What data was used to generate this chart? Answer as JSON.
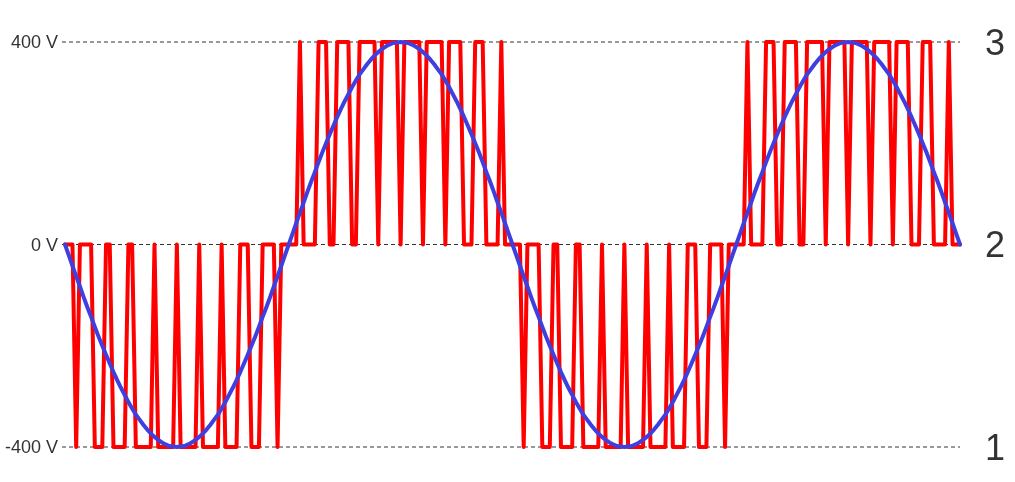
{
  "chart_data": {
    "type": "line",
    "ylim": [
      -400,
      400
    ],
    "yticks": [
      {
        "value": 400,
        "label": "400 V"
      },
      {
        "value": 0,
        "label": "0 V"
      },
      {
        "value": -400,
        "label": "-400 V"
      }
    ],
    "grid": "y",
    "tick_labels": "y",
    "annotations": [
      "1",
      "2",
      "3"
    ],
    "categories": [
      null,
      null,
      null,
      null,
      null,
      null,
      null,
      null,
      null,
      null,
      null,
      null,
      null,
      null,
      null,
      null,
      null,
      null,
      null,
      null,
      null,
      null,
      null,
      null,
      null,
      null,
      null,
      null,
      null,
      null,
      null,
      null,
      null,
      null,
      null,
      null,
      null,
      null,
      null,
      null,
      null,
      null,
      null,
      null,
      null,
      null,
      null,
      null,
      null,
      null,
      null,
      null,
      null,
      null,
      null,
      null,
      null,
      null,
      null,
      null,
      null,
      null,
      null,
      null,
      null,
      null,
      null,
      null,
      null,
      null,
      null,
      null,
      null,
      null,
      null,
      null,
      null,
      null,
      null,
      null,
      null,
      null,
      null,
      null,
      null,
      null,
      null,
      null,
      null,
      null,
      null,
      null,
      null,
      null,
      null,
      null,
      null,
      null,
      null,
      null,
      null,
      null,
      null,
      null,
      null,
      null,
      null,
      null,
      null,
      null,
      null,
      null,
      null,
      null,
      null,
      null,
      null,
      null,
      null,
      null,
      null,
      null,
      null,
      null,
      null,
      null,
      null,
      null,
      null,
      null,
      null,
      null,
      null,
      null,
      null,
      null,
      null,
      null,
      null,
      null,
      null,
      null,
      null,
      null,
      null,
      null,
      null,
      null,
      null,
      null,
      null,
      null,
      null,
      null,
      null,
      null,
      null,
      null,
      null,
      null,
      null,
      null,
      null,
      null,
      null,
      null,
      null,
      null,
      null,
      null,
      null,
      null,
      null,
      null,
      null,
      null,
      null,
      null,
      null,
      null,
      null,
      null,
      null,
      null,
      null,
      null,
      null,
      null,
      null,
      null,
      null,
      null,
      null,
      null,
      null,
      null,
      null,
      null,
      null,
      null,
      null,
      null,
      null,
      null,
      null,
      null,
      null,
      null,
      null,
      null,
      null,
      null,
      null,
      null,
      null,
      null,
      null,
      null,
      null,
      null,
      null,
      null,
      null,
      null,
      null,
      null,
      null,
      null,
      null,
      null,
      null,
      null,
      null,
      null,
      null,
      null,
      null,
      null,
      null,
      null,
      null
    ],
    "series": [
      {
        "color": "#ff0000",
        "values": [
          0,
          0,
          0,
          -400,
          0,
          0,
          0,
          0,
          -400,
          -400,
          -400,
          0,
          0,
          -400,
          -400,
          -400,
          -400,
          0,
          0,
          -400,
          -400,
          -400,
          -400,
          -400,
          0,
          -400,
          -400,
          -400,
          -400,
          -400,
          0,
          -400,
          -400,
          -400,
          -400,
          -400,
          0,
          -400,
          -400,
          -400,
          -400,
          -400,
          0,
          -400,
          -400,
          -400,
          -400,
          0,
          0,
          0,
          -400,
          -400,
          -400,
          0,
          0,
          0,
          0,
          -400,
          0,
          0,
          0,
          0,
          0,
          400,
          0,
          0,
          0,
          0,
          400,
          400,
          400,
          0,
          0,
          400,
          400,
          400,
          400,
          0,
          0,
          400,
          400,
          400,
          400,
          400,
          0,
          400,
          400,
          400,
          400,
          400,
          0,
          400,
          400,
          400,
          400,
          400,
          0,
          400,
          400,
          400,
          400,
          400,
          0,
          400,
          400,
          400,
          400,
          0,
          0,
          0,
          400,
          400,
          400,
          0,
          0,
          0,
          0,
          400,
          0,
          0,
          0,
          0,
          0,
          -400,
          0,
          0,
          0,
          0,
          -400,
          -400,
          -400,
          0,
          0,
          -400,
          -400,
          -400,
          -400,
          0,
          0,
          -400,
          -400,
          -400,
          -400,
          -400,
          0,
          -400,
          -400,
          -400,
          -400,
          -400,
          0,
          -400,
          -400,
          -400,
          -400,
          -400,
          0,
          -400,
          -400,
          -400,
          -400,
          -400,
          0,
          -400,
          -400,
          -400,
          -400,
          0,
          0,
          0,
          -400,
          -400,
          -400,
          0,
          0,
          0,
          0,
          -400,
          0,
          0,
          0,
          0,
          0,
          400,
          0,
          0,
          0,
          0,
          400,
          400,
          400,
          0,
          0,
          400,
          400,
          400,
          400,
          0,
          0,
          400,
          400,
          400,
          400,
          400,
          0,
          400,
          400,
          400,
          400,
          400,
          0,
          400,
          400,
          400,
          400,
          400,
          0,
          400,
          400,
          400,
          400,
          400,
          0,
          400,
          400,
          400,
          400,
          0,
          0,
          0,
          400,
          400,
          400,
          0,
          0,
          0,
          0,
          400,
          0,
          0,
          0
        ]
      },
      {
        "color": "#3f3fdf",
        "values": [
          0,
          -21,
          -42,
          -63,
          -83,
          -104,
          -124,
          -143,
          -163,
          -182,
          -200,
          -218,
          -235,
          -252,
          -268,
          -283,
          -297,
          -311,
          -324,
          -336,
          -346,
          -356,
          -365,
          -373,
          -380,
          -386,
          -391,
          -395,
          -398,
          -399,
          -400,
          -399,
          -398,
          -395,
          -391,
          -386,
          -380,
          -373,
          -365,
          -356,
          -346,
          -336,
          -324,
          -311,
          -297,
          -283,
          -268,
          -252,
          -235,
          -218,
          -200,
          -182,
          -163,
          -143,
          -124,
          -104,
          -83,
          -63,
          -42,
          -21,
          0,
          21,
          42,
          63,
          83,
          104,
          124,
          143,
          163,
          182,
          200,
          218,
          235,
          252,
          268,
          283,
          297,
          311,
          324,
          336,
          346,
          356,
          365,
          373,
          380,
          386,
          391,
          395,
          398,
          399,
          400,
          399,
          398,
          395,
          391,
          386,
          380,
          373,
          365,
          356,
          346,
          336,
          324,
          311,
          297,
          283,
          268,
          252,
          235,
          218,
          200,
          182,
          163,
          143,
          124,
          104,
          83,
          63,
          42,
          21,
          0,
          -21,
          -42,
          -63,
          -83,
          -104,
          -124,
          -143,
          -163,
          -182,
          -200,
          -218,
          -235,
          -252,
          -268,
          -283,
          -297,
          -311,
          -324,
          -336,
          -346,
          -356,
          -365,
          -373,
          -380,
          -386,
          -391,
          -395,
          -398,
          -399,
          -400,
          -399,
          -398,
          -395,
          -391,
          -386,
          -380,
          -373,
          -365,
          -356,
          -346,
          -336,
          -324,
          -311,
          -297,
          -283,
          -268,
          -252,
          -235,
          -218,
          -200,
          -182,
          -163,
          -143,
          -124,
          -104,
          -83,
          -63,
          -42,
          -21,
          0,
          21,
          42,
          63,
          83,
          104,
          124,
          143,
          163,
          182,
          200,
          218,
          235,
          252,
          268,
          283,
          297,
          311,
          324,
          336,
          346,
          356,
          365,
          373,
          380,
          386,
          391,
          395,
          398,
          399,
          400,
          399,
          398,
          395,
          391,
          386,
          380,
          373,
          365,
          356,
          346,
          336,
          324,
          311,
          297,
          283,
          268,
          252,
          235,
          218,
          200,
          182,
          163,
          143,
          124,
          104,
          83,
          63,
          42,
          21,
          0
        ]
      }
    ]
  }
}
